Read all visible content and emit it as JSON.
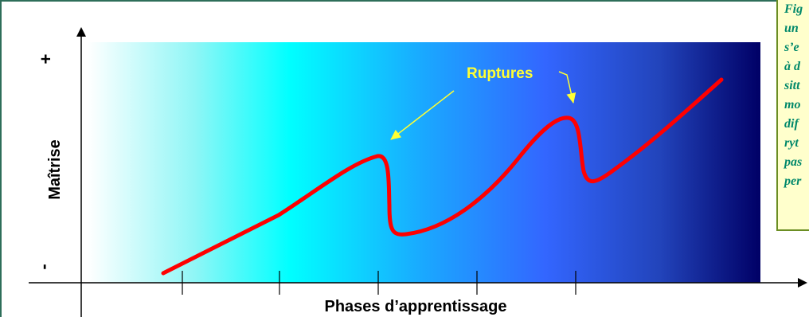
{
  "axes": {
    "y_label": "Maîtrise",
    "y_plus": "+",
    "y_minus": "-",
    "x_label": "Phases d’apprentissage"
  },
  "annotation": {
    "label": "Ruptures"
  },
  "side_note": {
    "lines": [
      "Fig",
      "un",
      "s’e",
      "à  d",
      "sitt",
      "mo",
      "dif",
      "ryt",
      "pas",
      "per"
    ]
  },
  "colors": {
    "curve": "#ff0000",
    "arrows": "#ffff33",
    "ruptures_text": "#ffff33",
    "note_text": "#00886a",
    "note_background": "#ffffcc",
    "note_border": "#6b8e23",
    "frame_border": "#2e6e5a",
    "gradient": [
      "#ffffff",
      "#00ffff",
      "#3366ff",
      "#000066"
    ]
  }
}
